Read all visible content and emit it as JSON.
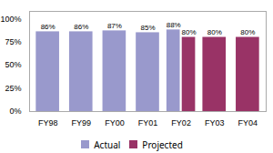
{
  "chart_data": {
    "type": "bar",
    "categories": [
      "FY98",
      "FY99",
      "FY00",
      "FY01",
      "FY02",
      "FY03",
      "FY04"
    ],
    "series": [
      {
        "name": "Actual",
        "color": "#9999cc",
        "values": [
          86,
          86,
          87,
          85,
          88,
          null,
          null
        ],
        "value_labels": [
          "86%",
          "86%",
          "87%",
          "85%",
          "88%",
          null,
          null
        ]
      },
      {
        "name": "Projected",
        "color": "#993366",
        "values": [
          null,
          null,
          null,
          null,
          80,
          80,
          80
        ],
        "value_labels": [
          null,
          null,
          null,
          null,
          "80%",
          "80%",
          "80%"
        ]
      }
    ],
    "ylim": [
      0,
      108
    ],
    "yticks": [
      {
        "value": 0,
        "label": "0%"
      },
      {
        "value": 25,
        "label": "25%"
      },
      {
        "value": 50,
        "label": "50%"
      },
      {
        "value": 75,
        "label": "75%"
      },
      {
        "value": 100,
        "label": "100%"
      }
    ],
    "data_labels": true,
    "legend": "bottom",
    "grid": false
  }
}
